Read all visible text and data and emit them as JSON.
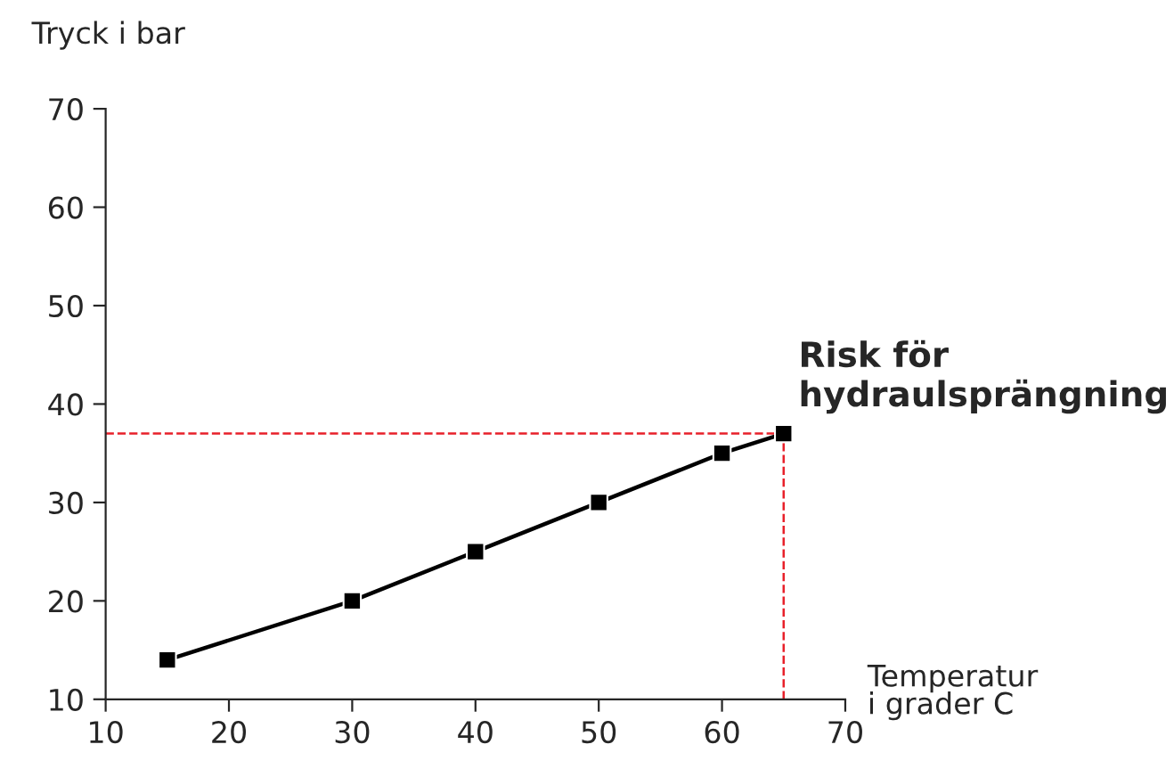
{
  "chart_data": {
    "type": "line",
    "xlabel": "Temperatur\ni grader C",
    "ylabel": "Tryck i bar",
    "x": [
      15,
      30,
      40,
      50,
      60,
      65
    ],
    "series": [
      {
        "color": "#000000",
        "values": [
          14,
          20,
          25,
          30,
          35,
          37
        ]
      }
    ],
    "marker": "square",
    "line_style": "solid",
    "xlim": [
      10,
      70
    ],
    "ylim": [
      10,
      70
    ],
    "xticks": [
      10,
      20,
      30,
      40,
      50,
      60,
      70
    ],
    "yticks": [
      10,
      20,
      30,
      40,
      50,
      60,
      70
    ],
    "grid": false,
    "legend": false,
    "ref_lines": [
      {
        "axis": "y",
        "value": 37,
        "color": "#e8202a",
        "line_style": "dashed"
      },
      {
        "axis": "x",
        "value": 65,
        "color": "#e8202a",
        "line_style": "dashed"
      }
    ],
    "annotations": [
      {
        "text": "Risk för\nhydraulsprängning",
        "x": 65,
        "y": 37
      }
    ]
  }
}
